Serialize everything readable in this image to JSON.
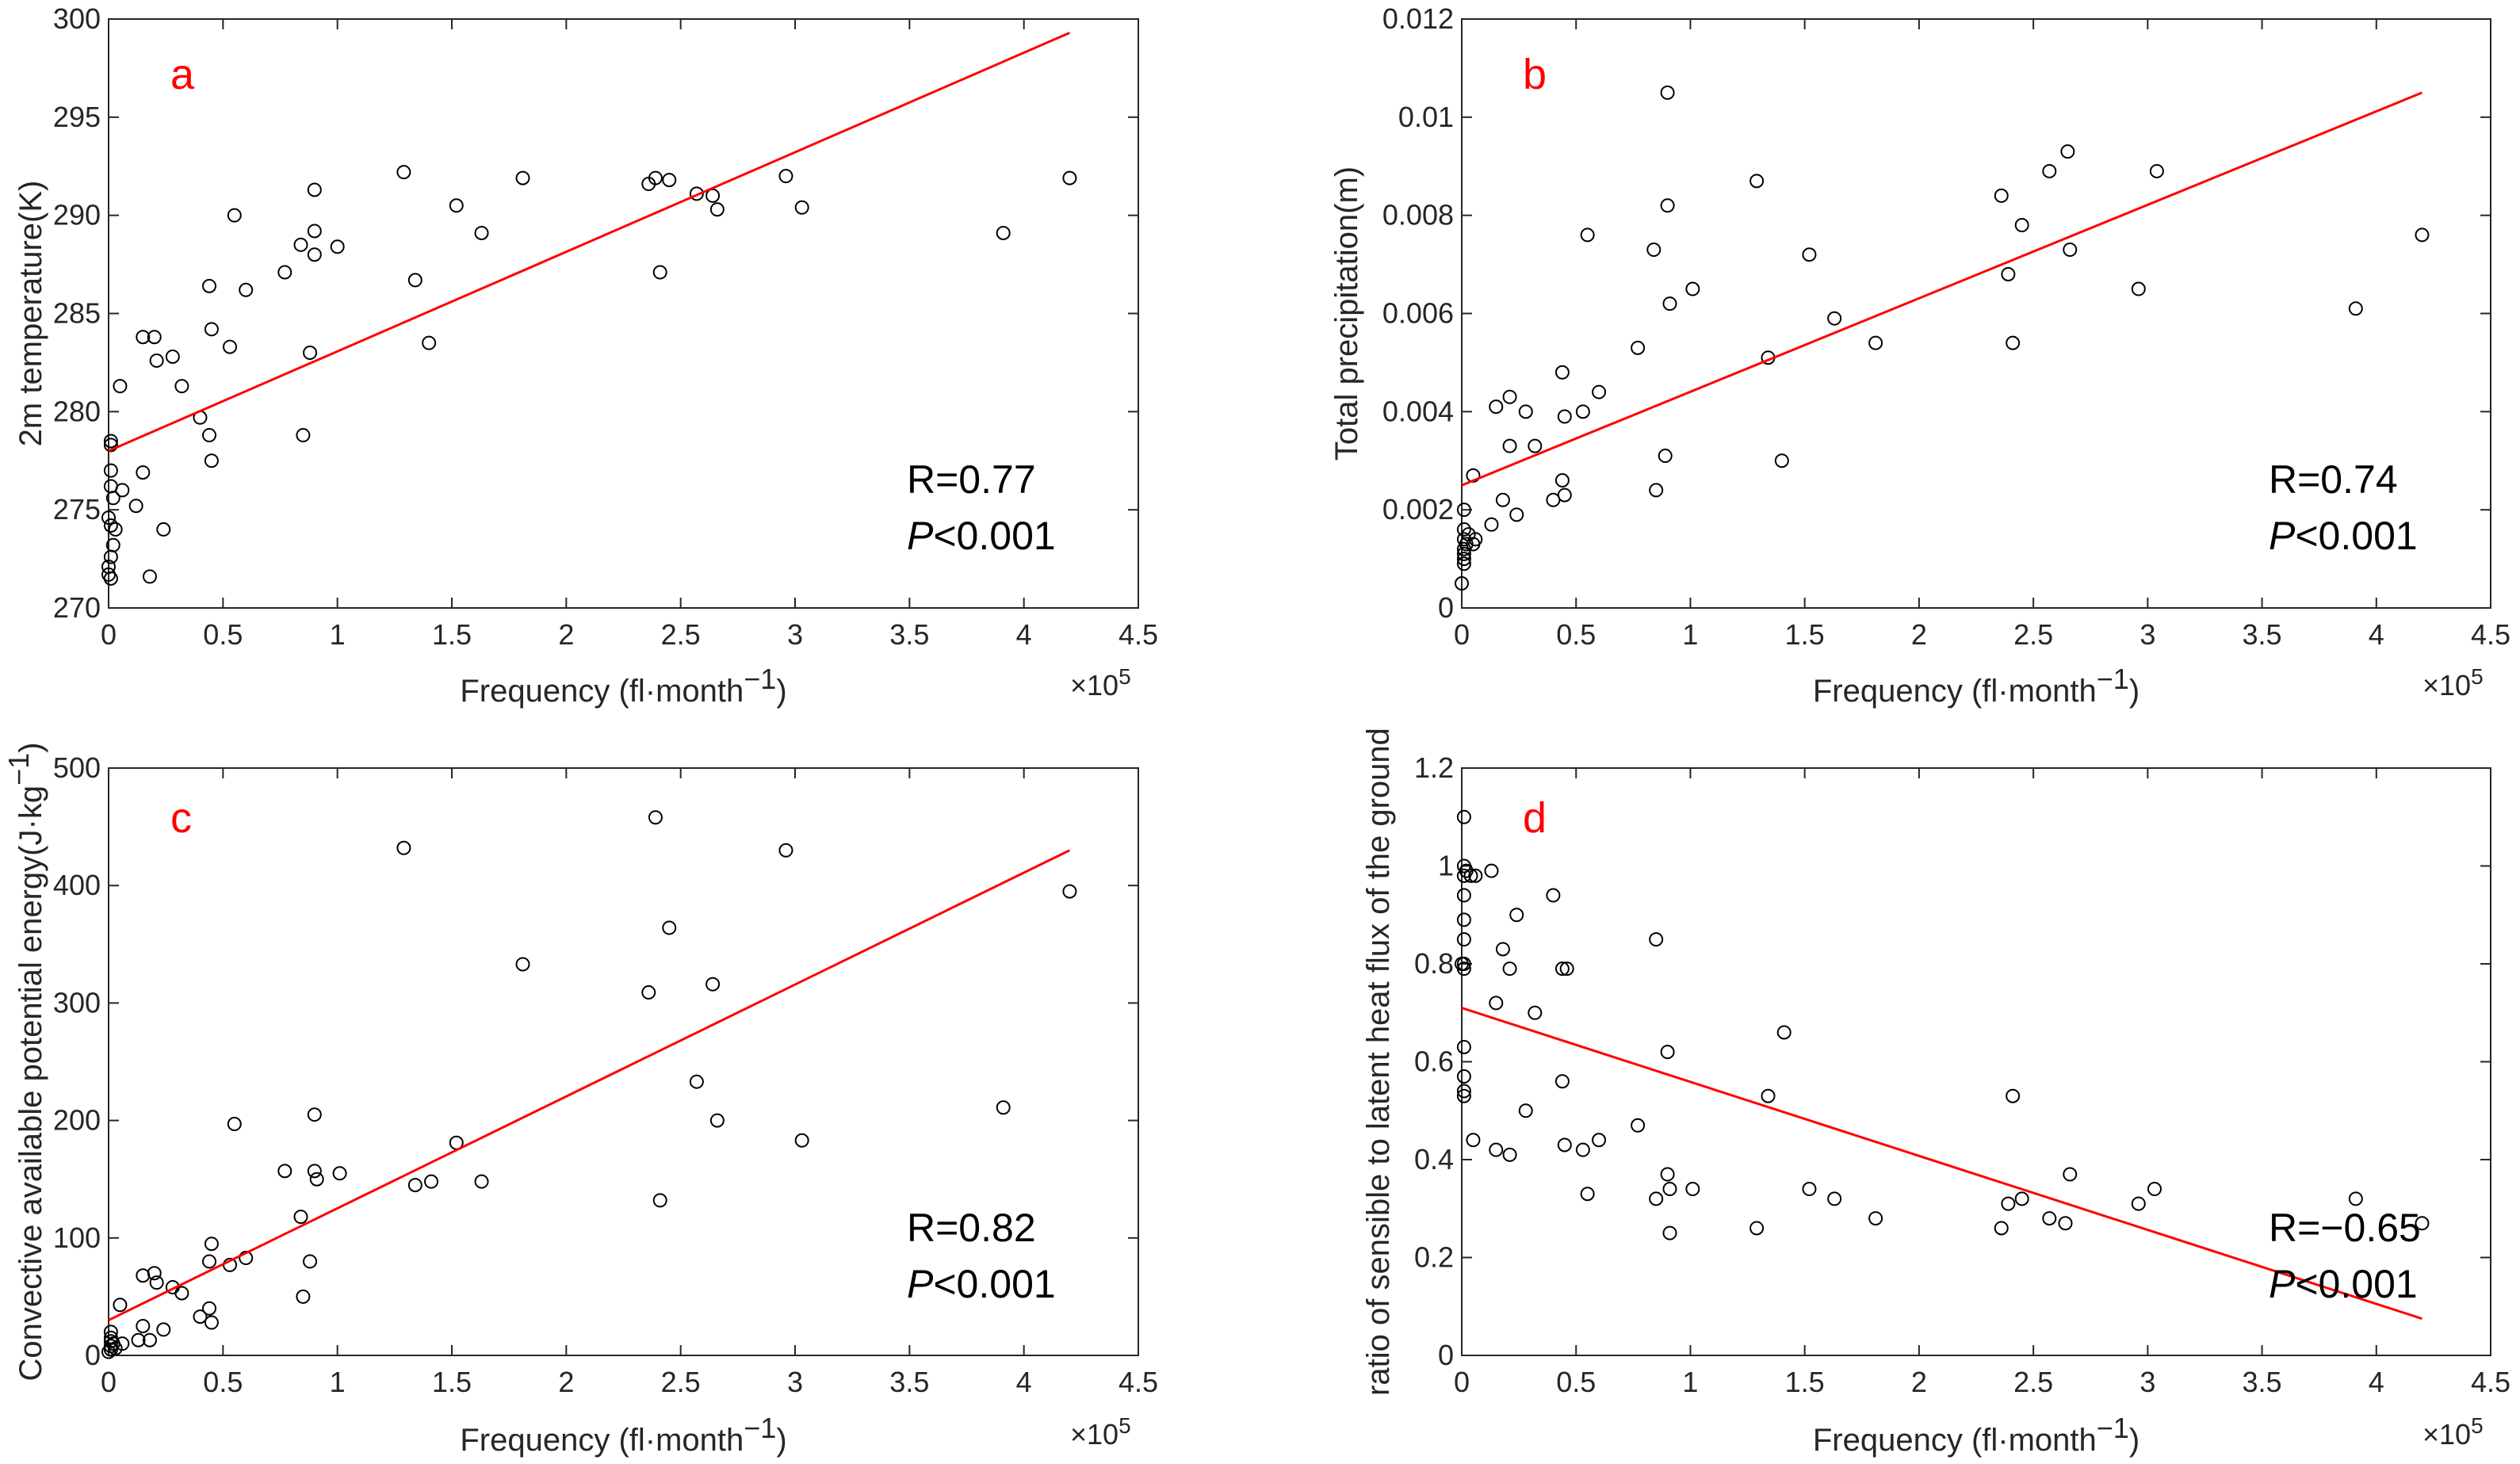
{
  "colors": {
    "fit_line": "#ff0000",
    "marker": "#000000",
    "axis": "#262626",
    "panel_letter": "#ff0000"
  },
  "chart_data": [
    {
      "type": "scatter",
      "panel": "a",
      "xlabel": "Frequency (fl·month",
      "xlabel_exp": "−1",
      "xlabel_close": ")",
      "x_multiplier": "×10",
      "x_multiplier_exp": "5",
      "ylabel": "2m temperature(K)",
      "xlim": [
        0,
        4.5
      ],
      "ylim": [
        270,
        300
      ],
      "xticks": [
        0,
        0.5,
        1,
        1.5,
        2,
        2.5,
        3,
        3.5,
        4,
        4.5
      ],
      "xtick_labels": [
        "0",
        "0.5",
        "1",
        "1.5",
        "2",
        "2.5",
        "3",
        "3.5",
        "4",
        "4.5"
      ],
      "yticks": [
        270,
        275,
        280,
        285,
        290,
        295,
        300
      ],
      "ytick_labels": [
        "270",
        "275",
        "280",
        "285",
        "290",
        "295",
        "300"
      ],
      "stat_r": "R=0.77",
      "stat_p_italic": "P",
      "stat_p_rest": "<0.001",
      "fit_line": {
        "x": [
          0,
          4.2
        ],
        "y": [
          278,
          299.3
        ]
      },
      "points": [
        [
          0.01,
          278.5
        ],
        [
          0.01,
          278.3
        ],
        [
          0.01,
          277.0
        ],
        [
          0.01,
          276.2
        ],
        [
          0.02,
          275.6
        ],
        [
          0.0,
          274.6
        ],
        [
          0.01,
          274.2
        ],
        [
          0.02,
          273.2
        ],
        [
          0.01,
          272.6
        ],
        [
          0.0,
          272.1
        ],
        [
          0.01,
          271.5
        ],
        [
          0.0,
          271.7
        ],
        [
          0.03,
          274.0
        ],
        [
          0.05,
          281.3
        ],
        [
          0.06,
          276.0
        ],
        [
          0.12,
          275.2
        ],
        [
          0.15,
          276.9
        ],
        [
          0.15,
          283.8
        ],
        [
          0.18,
          271.6
        ],
        [
          0.2,
          283.8
        ],
        [
          0.21,
          282.6
        ],
        [
          0.24,
          274.0
        ],
        [
          0.28,
          282.8
        ],
        [
          0.32,
          281.3
        ],
        [
          0.4,
          279.7
        ],
        [
          0.44,
          286.4
        ],
        [
          0.44,
          278.8
        ],
        [
          0.45,
          284.2
        ],
        [
          0.45,
          277.5
        ],
        [
          0.53,
          283.3
        ],
        [
          0.55,
          290.0
        ],
        [
          0.6,
          286.2
        ],
        [
          0.77,
          287.1
        ],
        [
          0.84,
          288.5
        ],
        [
          0.85,
          278.8
        ],
        [
          0.88,
          283.0
        ],
        [
          0.9,
          291.3
        ],
        [
          0.9,
          289.2
        ],
        [
          0.9,
          288.0
        ],
        [
          1.0,
          288.4
        ],
        [
          1.29,
          292.2
        ],
        [
          1.34,
          286.7
        ],
        [
          1.4,
          283.5
        ],
        [
          1.52,
          290.5
        ],
        [
          1.63,
          289.1
        ],
        [
          1.81,
          291.9
        ],
        [
          2.36,
          291.6
        ],
        [
          2.39,
          291.9
        ],
        [
          2.41,
          287.1
        ],
        [
          2.45,
          291.8
        ],
        [
          2.57,
          291.1
        ],
        [
          2.64,
          291.0
        ],
        [
          2.66,
          290.3
        ],
        [
          2.96,
          292.0
        ],
        [
          3.03,
          290.4
        ],
        [
          3.91,
          289.1
        ],
        [
          4.2,
          291.9
        ]
      ]
    },
    {
      "type": "scatter",
      "panel": "b",
      "xlabel": "Frequency (fl·month",
      "xlabel_exp": "−1",
      "xlabel_close": ")",
      "x_multiplier": "×10",
      "x_multiplier_exp": "5",
      "ylabel": "Total precipitation(m)",
      "xlim": [
        0,
        4.5
      ],
      "ylim": [
        0,
        0.012
      ],
      "xticks": [
        0,
        0.5,
        1,
        1.5,
        2,
        2.5,
        3,
        3.5,
        4,
        4.5
      ],
      "xtick_labels": [
        "0",
        "0.5",
        "1",
        "1.5",
        "2",
        "2.5",
        "3",
        "3.5",
        "4",
        "4.5"
      ],
      "yticks": [
        0,
        0.002,
        0.004,
        0.006,
        0.008,
        0.01,
        0.012
      ],
      "ytick_labels": [
        "0",
        "0.002",
        "0.004",
        "0.006",
        "0.008",
        "0.01",
        "0.012"
      ],
      "stat_r": "R=0.74",
      "stat_p_italic": "P",
      "stat_p_rest": "<0.001",
      "fit_line": {
        "x": [
          0,
          4.2
        ],
        "y": [
          0.0025,
          0.0105
        ]
      },
      "points": [
        [
          0.01,
          0.002
        ],
        [
          0.01,
          0.0016
        ],
        [
          0.01,
          0.0014
        ],
        [
          0.01,
          0.0012
        ],
        [
          0.01,
          0.0011
        ],
        [
          0.01,
          0.001
        ],
        [
          0.01,
          0.0009
        ],
        [
          0.0,
          0.0005
        ],
        [
          0.02,
          0.0013
        ],
        [
          0.03,
          0.0015
        ],
        [
          0.05,
          0.0013
        ],
        [
          0.05,
          0.0027
        ],
        [
          0.06,
          0.0014
        ],
        [
          0.13,
          0.0017
        ],
        [
          0.15,
          0.0041
        ],
        [
          0.18,
          0.0022
        ],
        [
          0.21,
          0.0043
        ],
        [
          0.21,
          0.0033
        ],
        [
          0.24,
          0.0019
        ],
        [
          0.28,
          0.004
        ],
        [
          0.32,
          0.0033
        ],
        [
          0.4,
          0.0022
        ],
        [
          0.44,
          0.0048
        ],
        [
          0.44,
          0.0026
        ],
        [
          0.45,
          0.0039
        ],
        [
          0.45,
          0.0023
        ],
        [
          0.53,
          0.004
        ],
        [
          0.55,
          0.0076
        ],
        [
          0.6,
          0.0044
        ],
        [
          0.77,
          0.0053
        ],
        [
          0.84,
          0.0073
        ],
        [
          0.85,
          0.0024
        ],
        [
          0.89,
          0.0031
        ],
        [
          0.9,
          0.0105
        ],
        [
          0.9,
          0.0082
        ],
        [
          0.91,
          0.0062
        ],
        [
          1.01,
          0.0065
        ],
        [
          1.29,
          0.0087
        ],
        [
          1.34,
          0.0051
        ],
        [
          1.4,
          0.003
        ],
        [
          1.52,
          0.0072
        ],
        [
          1.63,
          0.0059
        ],
        [
          1.81,
          0.0054
        ],
        [
          2.36,
          0.0084
        ],
        [
          2.39,
          0.0068
        ],
        [
          2.41,
          0.0054
        ],
        [
          2.45,
          0.0078
        ],
        [
          2.57,
          0.0089
        ],
        [
          2.65,
          0.0093
        ],
        [
          2.66,
          0.0073
        ],
        [
          2.96,
          0.0065
        ],
        [
          3.04,
          0.0089
        ],
        [
          3.91,
          0.0061
        ],
        [
          4.2,
          0.0076
        ]
      ]
    },
    {
      "type": "scatter",
      "panel": "c",
      "xlabel": "Frequency (fl·month",
      "xlabel_exp": "−1",
      "xlabel_close": ")",
      "x_multiplier": "×10",
      "x_multiplier_exp": "5",
      "ylabel": "Convective available potential energy(J·kg",
      "ylabel_exp": "−1",
      "ylabel_close": ")",
      "xlim": [
        0,
        4.5
      ],
      "ylim": [
        0,
        500
      ],
      "xticks": [
        0,
        0.5,
        1,
        1.5,
        2,
        2.5,
        3,
        3.5,
        4,
        4.5
      ],
      "xtick_labels": [
        "0",
        "0.5",
        "1",
        "1.5",
        "2",
        "2.5",
        "3",
        "3.5",
        "4",
        "4.5"
      ],
      "yticks": [
        0,
        100,
        200,
        300,
        400,
        500
      ],
      "ytick_labels": [
        "0",
        "100",
        "200",
        "300",
        "400",
        "500"
      ],
      "stat_r": "R=0.82",
      "stat_p_italic": "P",
      "stat_p_rest": "<0.001",
      "fit_line": {
        "x": [
          0,
          4.2
        ],
        "y": [
          30,
          430
        ]
      },
      "points": [
        [
          0.01,
          20
        ],
        [
          0.01,
          15
        ],
        [
          0.01,
          12
        ],
        [
          0.01,
          8
        ],
        [
          0.01,
          5
        ],
        [
          0.0,
          3
        ],
        [
          0.02,
          10
        ],
        [
          0.03,
          6
        ],
        [
          0.05,
          43
        ],
        [
          0.06,
          10
        ],
        [
          0.13,
          13
        ],
        [
          0.15,
          68
        ],
        [
          0.15,
          25
        ],
        [
          0.18,
          13
        ],
        [
          0.2,
          70
        ],
        [
          0.21,
          62
        ],
        [
          0.24,
          22
        ],
        [
          0.28,
          58
        ],
        [
          0.32,
          53
        ],
        [
          0.4,
          33
        ],
        [
          0.44,
          80
        ],
        [
          0.44,
          40
        ],
        [
          0.45,
          95
        ],
        [
          0.45,
          28
        ],
        [
          0.53,
          77
        ],
        [
          0.55,
          197
        ],
        [
          0.6,
          83
        ],
        [
          0.77,
          157
        ],
        [
          0.84,
          118
        ],
        [
          0.85,
          50
        ],
        [
          0.88,
          80
        ],
        [
          0.9,
          205
        ],
        [
          0.9,
          157
        ],
        [
          0.91,
          150
        ],
        [
          1.01,
          155
        ],
        [
          1.29,
          432
        ],
        [
          1.34,
          145
        ],
        [
          1.41,
          148
        ],
        [
          1.52,
          181
        ],
        [
          1.63,
          148
        ],
        [
          1.81,
          333
        ],
        [
          2.36,
          309
        ],
        [
          2.39,
          458
        ],
        [
          2.41,
          132
        ],
        [
          2.45,
          364
        ],
        [
          2.57,
          233
        ],
        [
          2.64,
          316
        ],
        [
          2.66,
          200
        ],
        [
          2.96,
          430
        ],
        [
          3.03,
          183
        ],
        [
          3.91,
          211
        ],
        [
          4.2,
          395
        ]
      ]
    },
    {
      "type": "scatter",
      "panel": "d",
      "xlabel": "Frequency (fl·month",
      "xlabel_exp": "−1",
      "xlabel_close": ")",
      "x_multiplier": "×10",
      "x_multiplier_exp": "5",
      "ylabel": "ratio of sensible to latent heat flux of the ground",
      "xlim": [
        0,
        4.5
      ],
      "ylim": [
        0,
        1.2
      ],
      "xticks": [
        0,
        0.5,
        1,
        1.5,
        2,
        2.5,
        3,
        3.5,
        4,
        4.5
      ],
      "xtick_labels": [
        "0",
        "0.5",
        "1",
        "1.5",
        "2",
        "2.5",
        "3",
        "3.5",
        "4",
        "4.5"
      ],
      "yticks": [
        0,
        0.2,
        0.4,
        0.6,
        0.8,
        1.0,
        1.2
      ],
      "ytick_labels": [
        "0",
        "0.2",
        "0.4",
        "0.6",
        "0.8",
        "1",
        "1.2"
      ],
      "stat_r": "R=−0.65",
      "stat_p_italic": "P",
      "stat_p_rest": "<0.001",
      "fit_line": {
        "x": [
          0,
          4.2
        ],
        "y": [
          0.71,
          0.075
        ]
      },
      "points": [
        [
          0.01,
          1.1
        ],
        [
          0.01,
          1.0
        ],
        [
          0.01,
          0.98
        ],
        [
          0.01,
          0.94
        ],
        [
          0.01,
          0.89
        ],
        [
          0.01,
          0.85
        ],
        [
          0.0,
          0.8
        ],
        [
          0.01,
          0.79
        ],
        [
          0.01,
          0.8
        ],
        [
          0.01,
          0.63
        ],
        [
          0.01,
          0.57
        ],
        [
          0.01,
          0.54
        ],
        [
          0.01,
          0.53
        ],
        [
          0.02,
          0.99
        ],
        [
          0.04,
          0.98
        ],
        [
          0.05,
          0.44
        ],
        [
          0.06,
          0.98
        ],
        [
          0.13,
          0.99
        ],
        [
          0.15,
          0.72
        ],
        [
          0.15,
          0.42
        ],
        [
          0.18,
          0.83
        ],
        [
          0.21,
          0.79
        ],
        [
          0.21,
          0.41
        ],
        [
          0.24,
          0.9
        ],
        [
          0.28,
          0.5
        ],
        [
          0.32,
          0.7
        ],
        [
          0.4,
          0.94
        ],
        [
          0.44,
          0.79
        ],
        [
          0.44,
          0.56
        ],
        [
          0.45,
          0.43
        ],
        [
          0.46,
          0.79
        ],
        [
          0.53,
          0.42
        ],
        [
          0.55,
          0.33
        ],
        [
          0.6,
          0.44
        ],
        [
          0.77,
          0.47
        ],
        [
          0.85,
          0.85
        ],
        [
          0.85,
          0.32
        ],
        [
          0.9,
          0.62
        ],
        [
          0.9,
          0.37
        ],
        [
          0.91,
          0.34
        ],
        [
          0.91,
          0.25
        ],
        [
          1.01,
          0.34
        ],
        [
          1.29,
          0.26
        ],
        [
          1.34,
          0.53
        ],
        [
          1.41,
          0.66
        ],
        [
          1.52,
          0.34
        ],
        [
          1.63,
          0.32
        ],
        [
          1.81,
          0.28
        ],
        [
          2.36,
          0.26
        ],
        [
          2.39,
          0.31
        ],
        [
          2.41,
          0.53
        ],
        [
          2.45,
          0.32
        ],
        [
          2.57,
          0.28
        ],
        [
          2.64,
          0.27
        ],
        [
          2.66,
          0.37
        ],
        [
          2.96,
          0.31
        ],
        [
          3.03,
          0.34
        ],
        [
          3.91,
          0.32
        ],
        [
          4.2,
          0.27
        ]
      ]
    }
  ]
}
